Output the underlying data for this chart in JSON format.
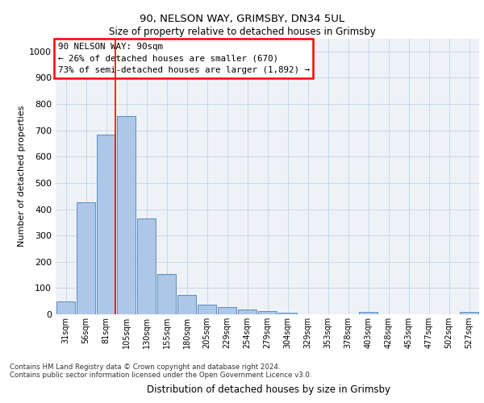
{
  "title1": "90, NELSON WAY, GRIMSBY, DN34 5UL",
  "title2": "Size of property relative to detached houses in Grimsby",
  "xlabel": "Distribution of detached houses by size in Grimsby",
  "ylabel": "Number of detached properties",
  "categories": [
    "31sqm",
    "56sqm",
    "81sqm",
    "105sqm",
    "130sqm",
    "155sqm",
    "180sqm",
    "205sqm",
    "229sqm",
    "254sqm",
    "279sqm",
    "304sqm",
    "329sqm",
    "353sqm",
    "378sqm",
    "403sqm",
    "428sqm",
    "453sqm",
    "477sqm",
    "502sqm",
    "527sqm"
  ],
  "values": [
    50,
    425,
    685,
    755,
    365,
    152,
    75,
    37,
    27,
    18,
    12,
    7,
    0,
    0,
    0,
    8,
    0,
    0,
    0,
    0,
    8
  ],
  "bar_color": "#aec6e8",
  "bar_edge_color": "#5a8fc0",
  "grid_color": "#c8d8e8",
  "red_line_index": 2,
  "annotation_text": "90 NELSON WAY: 90sqm\n← 26% of detached houses are smaller (670)\n73% of semi-detached houses are larger (1,892) →",
  "annotation_box_color": "white",
  "annotation_box_edge": "red",
  "ylim": [
    0,
    1050
  ],
  "yticks": [
    0,
    100,
    200,
    300,
    400,
    500,
    600,
    700,
    800,
    900,
    1000
  ],
  "footer1": "Contains HM Land Registry data © Crown copyright and database right 2024.",
  "footer2": "Contains public sector information licensed under the Open Government Licence v3.0.",
  "bg_color": "#eef2f7"
}
